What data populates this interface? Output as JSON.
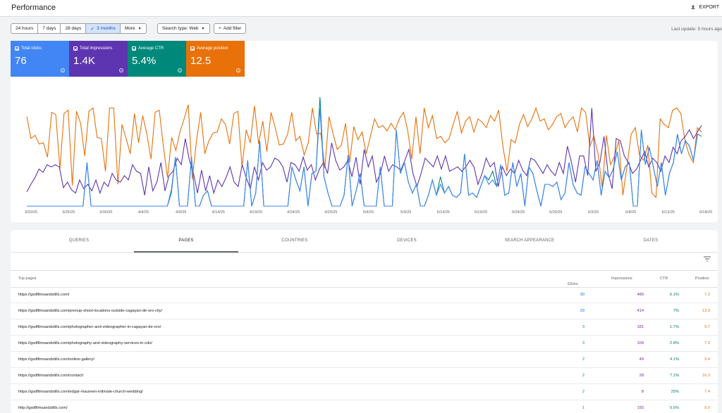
{
  "header": {
    "title": "Performance",
    "export_label": "EXPORT"
  },
  "toolbar": {
    "ranges": [
      "24 hours",
      "7 days",
      "28 days",
      "3 months",
      "More"
    ],
    "selected_range": "3 months",
    "search_type": "Search type: Web",
    "add_filter": "Add filter",
    "last_update": "Last update: 5 hours ago"
  },
  "metrics": [
    {
      "label": "Total clicks",
      "value": "76",
      "color": "#4285f4"
    },
    {
      "label": "Total impressions",
      "value": "1.4K",
      "color": "#5e35b1"
    },
    {
      "label": "Average CTR",
      "value": "5.4%",
      "color": "#00897b"
    },
    {
      "label": "Average position",
      "value": "12.5",
      "color": "#e8710a"
    }
  ],
  "chart_data": {
    "type": "line",
    "x_tick_labels": [
      "3/20/25",
      "3/25/25",
      "3/30/25",
      "4/4/25",
      "4/9/25",
      "4/14/25",
      "4/19/25",
      "4/24/25",
      "4/29/25",
      "5/4/25",
      "5/9/25",
      "5/14/25",
      "5/19/25",
      "5/24/25",
      "5/29/25",
      "6/3/25",
      "6/8/25",
      "6/13/25",
      "6/18/25"
    ],
    "series": [
      {
        "key": "position",
        "color": "#e8710a",
        "values": [
          0.82,
          0.62,
          0.65,
          0.57,
          0.58,
          0.45,
          0.86,
          0.84,
          0.34,
          0.85,
          0.88,
          0.19,
          0.87,
          0.76,
          0.46,
          0.87,
          0.9,
          0.63,
          0.62,
          0.32,
          0.9,
          0.9,
          0.2,
          0.75,
          0.62,
          0.48,
          0.85,
          0.58,
          0.83,
          0.66,
          0.43,
          0.86,
          0.88,
          0.55,
          0.26,
          0.63,
          0.51,
          0.68,
          0.8,
          0.93,
          0.25,
          0.6,
          0.86,
          0.48,
          0.6,
          0.67,
          0.68,
          0.8,
          0.75,
          0.57,
          0.85,
          0.87,
          0.36,
          0.7,
          0.58,
          0.92,
          0.57,
          0.78,
          0.5,
          0.86,
          0.72,
          0.56,
          0.57,
          0.66,
          0.86,
          0.6,
          0.64,
          0.47,
          0.58,
          0.9,
          0.66,
          0.67,
          0.35,
          0.82,
          0.66,
          0.52,
          0.56,
          0.76,
          0.4,
          0.73,
          0.61,
          0.68,
          0.48,
          0.64,
          0.8,
          0.72,
          0.74,
          0.69,
          0.76,
          0.7,
          0.8,
          0.86,
          0.7,
          0.43,
          0.82,
          0.48,
          0.9,
          0.72,
          0.83,
          0.62,
          0.64,
          0.58,
          0.62,
          0.75,
          0.87,
          0.67,
          0.78,
          0.82,
          0.68,
          0.8,
          0.77,
          0.72,
          0.83,
          0.78,
          0.88,
          0.55,
          0.32,
          0.61,
          0.58,
          0.75,
          0.84,
          0.73,
          0.8,
          0.9,
          0.78,
          0.8,
          0.7,
          0.75,
          0.82,
          0.85,
          0.72,
          0.78,
          0.82,
          0.68,
          0.9,
          0.86,
          0.55,
          0.64,
          0.48,
          0.17,
          0.65,
          0.38,
          0.46,
          0.6,
          0.1,
          0.37,
          0.66,
          0.72,
          0.47,
          0.42,
          0.56,
          0.12,
          0.08,
          0.8,
          0.75,
          0.72,
          0.88,
          0.9,
          0.85,
          0.6,
          0.47,
          0.4,
          0.72,
          0.68
        ]
      },
      {
        "key": "impressions",
        "color": "#5e35b1",
        "values": [
          0.13,
          0.2,
          0.26,
          0.34,
          0.31,
          0.38,
          0.36,
          0.38,
          0.36,
          0.17,
          0.22,
          0.15,
          0.12,
          0.24,
          0.16,
          0.2,
          0.14,
          0.24,
          0.12,
          0.22,
          0.18,
          0.3,
          0.24,
          0.22,
          0.28,
          0.24,
          0.38,
          0.32,
          0.3,
          0.1,
          0.36,
          0.14,
          0.22,
          0.4,
          0.14,
          0.28,
          0.32,
          0.44,
          0.38,
          0.62,
          0.42,
          0.3,
          0.12,
          0.33,
          0.14,
          0.28,
          0.12,
          0.24,
          0.18,
          0.26,
          0.36,
          0.22,
          0.18,
          0.38,
          0.26,
          0.16,
          0.36,
          0.24,
          0.4,
          0.33,
          0.36,
          0.44,
          0.42,
          0.36,
          0.22,
          0.4,
          0.38,
          0.32,
          0.45,
          0.33,
          0.38,
          0.24,
          0.34,
          0.4,
          0.3,
          0.58,
          0.42,
          0.33,
          0.36,
          0.42,
          0.27,
          0.45,
          0.2,
          0.52,
          0.36,
          0.46,
          0.22,
          0.3,
          0.46,
          0.32,
          0.38,
          0.36,
          0.33,
          0.42,
          0.52,
          0.3,
          0.18,
          0.3,
          0.44,
          0.4,
          0.36,
          0.46,
          0.34,
          0.46,
          0.32,
          0.34,
          0.36,
          0.32,
          0.36,
          0.42,
          0.36,
          0.2,
          0.3,
          0.44,
          0.36,
          0.4,
          0.18,
          0.36,
          0.28,
          0.34,
          0.3,
          0.42,
          0.33,
          0.28,
          0.44,
          0.42,
          0.36,
          0.3,
          0.38,
          0.32,
          0.28,
          0.4,
          0.3,
          0.55,
          0.4,
          0.22,
          0.46,
          0.46,
          0.28,
          0.9,
          0.32,
          0.4,
          0.64,
          0.3,
          0.16,
          0.62,
          0.6,
          0.46,
          0.4,
          0.3,
          0.34,
          0.42,
          0.5,
          0.36,
          0.44,
          0.4,
          0.32,
          0.46,
          0.4,
          0.54,
          0.48,
          0.6,
          0.64,
          0.7,
          0.62,
          0.68,
          0.74
        ]
      },
      {
        "key": "ctr",
        "color": "#00897b",
        "values": [
          0,
          0,
          0,
          0,
          0,
          0,
          0,
          0,
          0,
          0,
          0,
          0,
          0,
          0,
          0,
          0.4,
          0,
          0,
          0,
          0,
          0,
          0,
          0,
          0,
          0,
          0,
          0,
          0,
          0,
          0,
          0,
          0,
          0,
          0,
          0,
          0,
          0.15,
          0.45,
          0,
          0,
          0,
          0.45,
          0,
          0,
          0.1,
          0.14,
          0,
          0,
          0,
          0,
          0,
          0,
          0,
          0,
          0,
          0.42,
          0,
          0.12,
          0.6,
          0,
          0,
          0,
          0,
          0,
          0,
          0,
          0.36,
          0.24,
          0.14,
          0.36,
          0,
          0.3,
          0.32,
          1.0,
          0.27,
          0.12,
          0,
          0,
          0,
          0.1,
          0.47,
          0,
          0.14,
          0.3,
          0,
          0,
          0,
          0,
          0.36,
          0,
          0,
          0,
          0.7,
          0.3,
          0.4,
          0.22,
          0.12,
          0.2,
          0,
          0,
          0.1,
          0.24,
          0.1,
          0.27,
          0.12,
          0.18,
          0.1,
          0.08,
          0.12,
          0.48,
          0.1,
          0.12,
          0.08,
          0.18,
          0.28,
          0.24,
          0.32,
          0.18,
          0.38,
          0.1,
          0.12,
          0.4,
          0.18,
          0.3,
          0,
          0.36,
          0.3,
          0.14,
          0,
          0.2,
          0.2,
          0.18,
          0.22,
          0.06,
          0.12,
          0.4,
          0.2,
          0.12,
          0.1,
          0.36,
          0.3,
          0.24,
          0.42,
          0.1,
          0.32,
          0.26,
          0.34,
          0.5,
          0.24,
          0.36,
          0.4,
          0,
          0,
          0.7,
          0.38,
          0.54,
          0.36,
          0.18,
          0.4,
          0.1,
          0.3,
          0.4,
          0.66,
          0.48,
          0.6,
          0.55,
          0.42,
          0.66,
          0.64
        ]
      },
      {
        "key": "clicks",
        "color": "#4285f4",
        "values": [
          0,
          0,
          0,
          0,
          0,
          0,
          0,
          0,
          0,
          0,
          0,
          0,
          0,
          0,
          0,
          0.4,
          0,
          0,
          0,
          0,
          0,
          0,
          0,
          0,
          0,
          0,
          0,
          0,
          0,
          0,
          0,
          0,
          0,
          0,
          0,
          0,
          0.12,
          0.45,
          0,
          0,
          0,
          0.45,
          0,
          0,
          0.1,
          0.14,
          0,
          0,
          0,
          0,
          0,
          0,
          0,
          0,
          0,
          0.42,
          0,
          0.12,
          0.6,
          0,
          0,
          0,
          0,
          0,
          0,
          0,
          0.36,
          0.24,
          0.14,
          0.36,
          0,
          0.3,
          0.32,
          0.9,
          0.27,
          0.12,
          0,
          0,
          0,
          0.1,
          0.47,
          0,
          0.14,
          0.3,
          0,
          0,
          0,
          0,
          0.36,
          0,
          0,
          0,
          0.7,
          0.3,
          0.4,
          0.22,
          0.12,
          0.2,
          0,
          0,
          0.1,
          0.24,
          0.1,
          0.2,
          0.12,
          0.18,
          0.1,
          0.08,
          0.12,
          0.48,
          0.1,
          0.12,
          0.08,
          0.18,
          0.28,
          0.2,
          0.24,
          0.18,
          0.38,
          0.1,
          0.12,
          0.4,
          0.18,
          0.3,
          0,
          0.36,
          0.3,
          0.14,
          0,
          0.2,
          0.2,
          0.18,
          0.22,
          0.06,
          0.12,
          0.4,
          0.2,
          0.12,
          0.1,
          0.36,
          0.3,
          0.24,
          0.42,
          0.1,
          0.32,
          0.26,
          0.34,
          0.5,
          0.24,
          0.36,
          0.4,
          0,
          0,
          0.7,
          0.38,
          0.54,
          0.36,
          0.18,
          0.4,
          0.1,
          0.3,
          0.4,
          0.66,
          0.48,
          0.6,
          0.55,
          0.42,
          0.66,
          0.64
        ]
      }
    ]
  },
  "table": {
    "tabs": [
      "QUERIES",
      "PAGES",
      "COUNTRIES",
      "DEVICES",
      "SEARCH APPEARANCE",
      "DATES"
    ],
    "active_tab": "PAGES",
    "columns": {
      "page": "Top pages",
      "clicks": "Clicks",
      "impressions": "Impressions",
      "ctr": "CTR",
      "position": "Position"
    },
    "rows": [
      {
        "url": "https://gsdfilmsandstills.com/",
        "clicks": "30",
        "impressions": "489",
        "ctr": "6.1%",
        "position": "7.3"
      },
      {
        "url": "https://gsdfilmsandstills.com/prenup-shoot-locations-outside-cagayan-de-oro-city/",
        "clicks": "29",
        "impressions": "414",
        "ctr": "7%",
        "position": "13.9"
      },
      {
        "url": "https://gsdfilmsandstills.com/photographer-and-videographer-in-cagayan-de-oro/",
        "clicks": "3",
        "impressions": "181",
        "ctr": "1.7%",
        "position": "9.7"
      },
      {
        "url": "https://gsdfilmsandstills.com/photography-and-videography-services-in-cdo/",
        "clicks": "3",
        "impressions": "109",
        "ctr": "2.8%",
        "position": "7.3"
      },
      {
        "url": "https://gsdfilmsandstills.com/online-gallery/",
        "clicks": "2",
        "impressions": "49",
        "ctr": "4.1%",
        "position": "3.4"
      },
      {
        "url": "https://gsdfilmsandstills.com/contact/",
        "clicks": "2",
        "impressions": "28",
        "ctr": "7.1%",
        "position": "16.3"
      },
      {
        "url": "https://gsdfilmsandstills.com/edgar-maureen-intimate-church-wedding/",
        "clicks": "2",
        "impressions": "8",
        "ctr": "25%",
        "position": "7.4"
      },
      {
        "url": "http://gsdfilmsandstills.com/",
        "clicks": "1",
        "impressions": "155",
        "ctr": "0.6%",
        "position": "9.0"
      }
    ]
  }
}
